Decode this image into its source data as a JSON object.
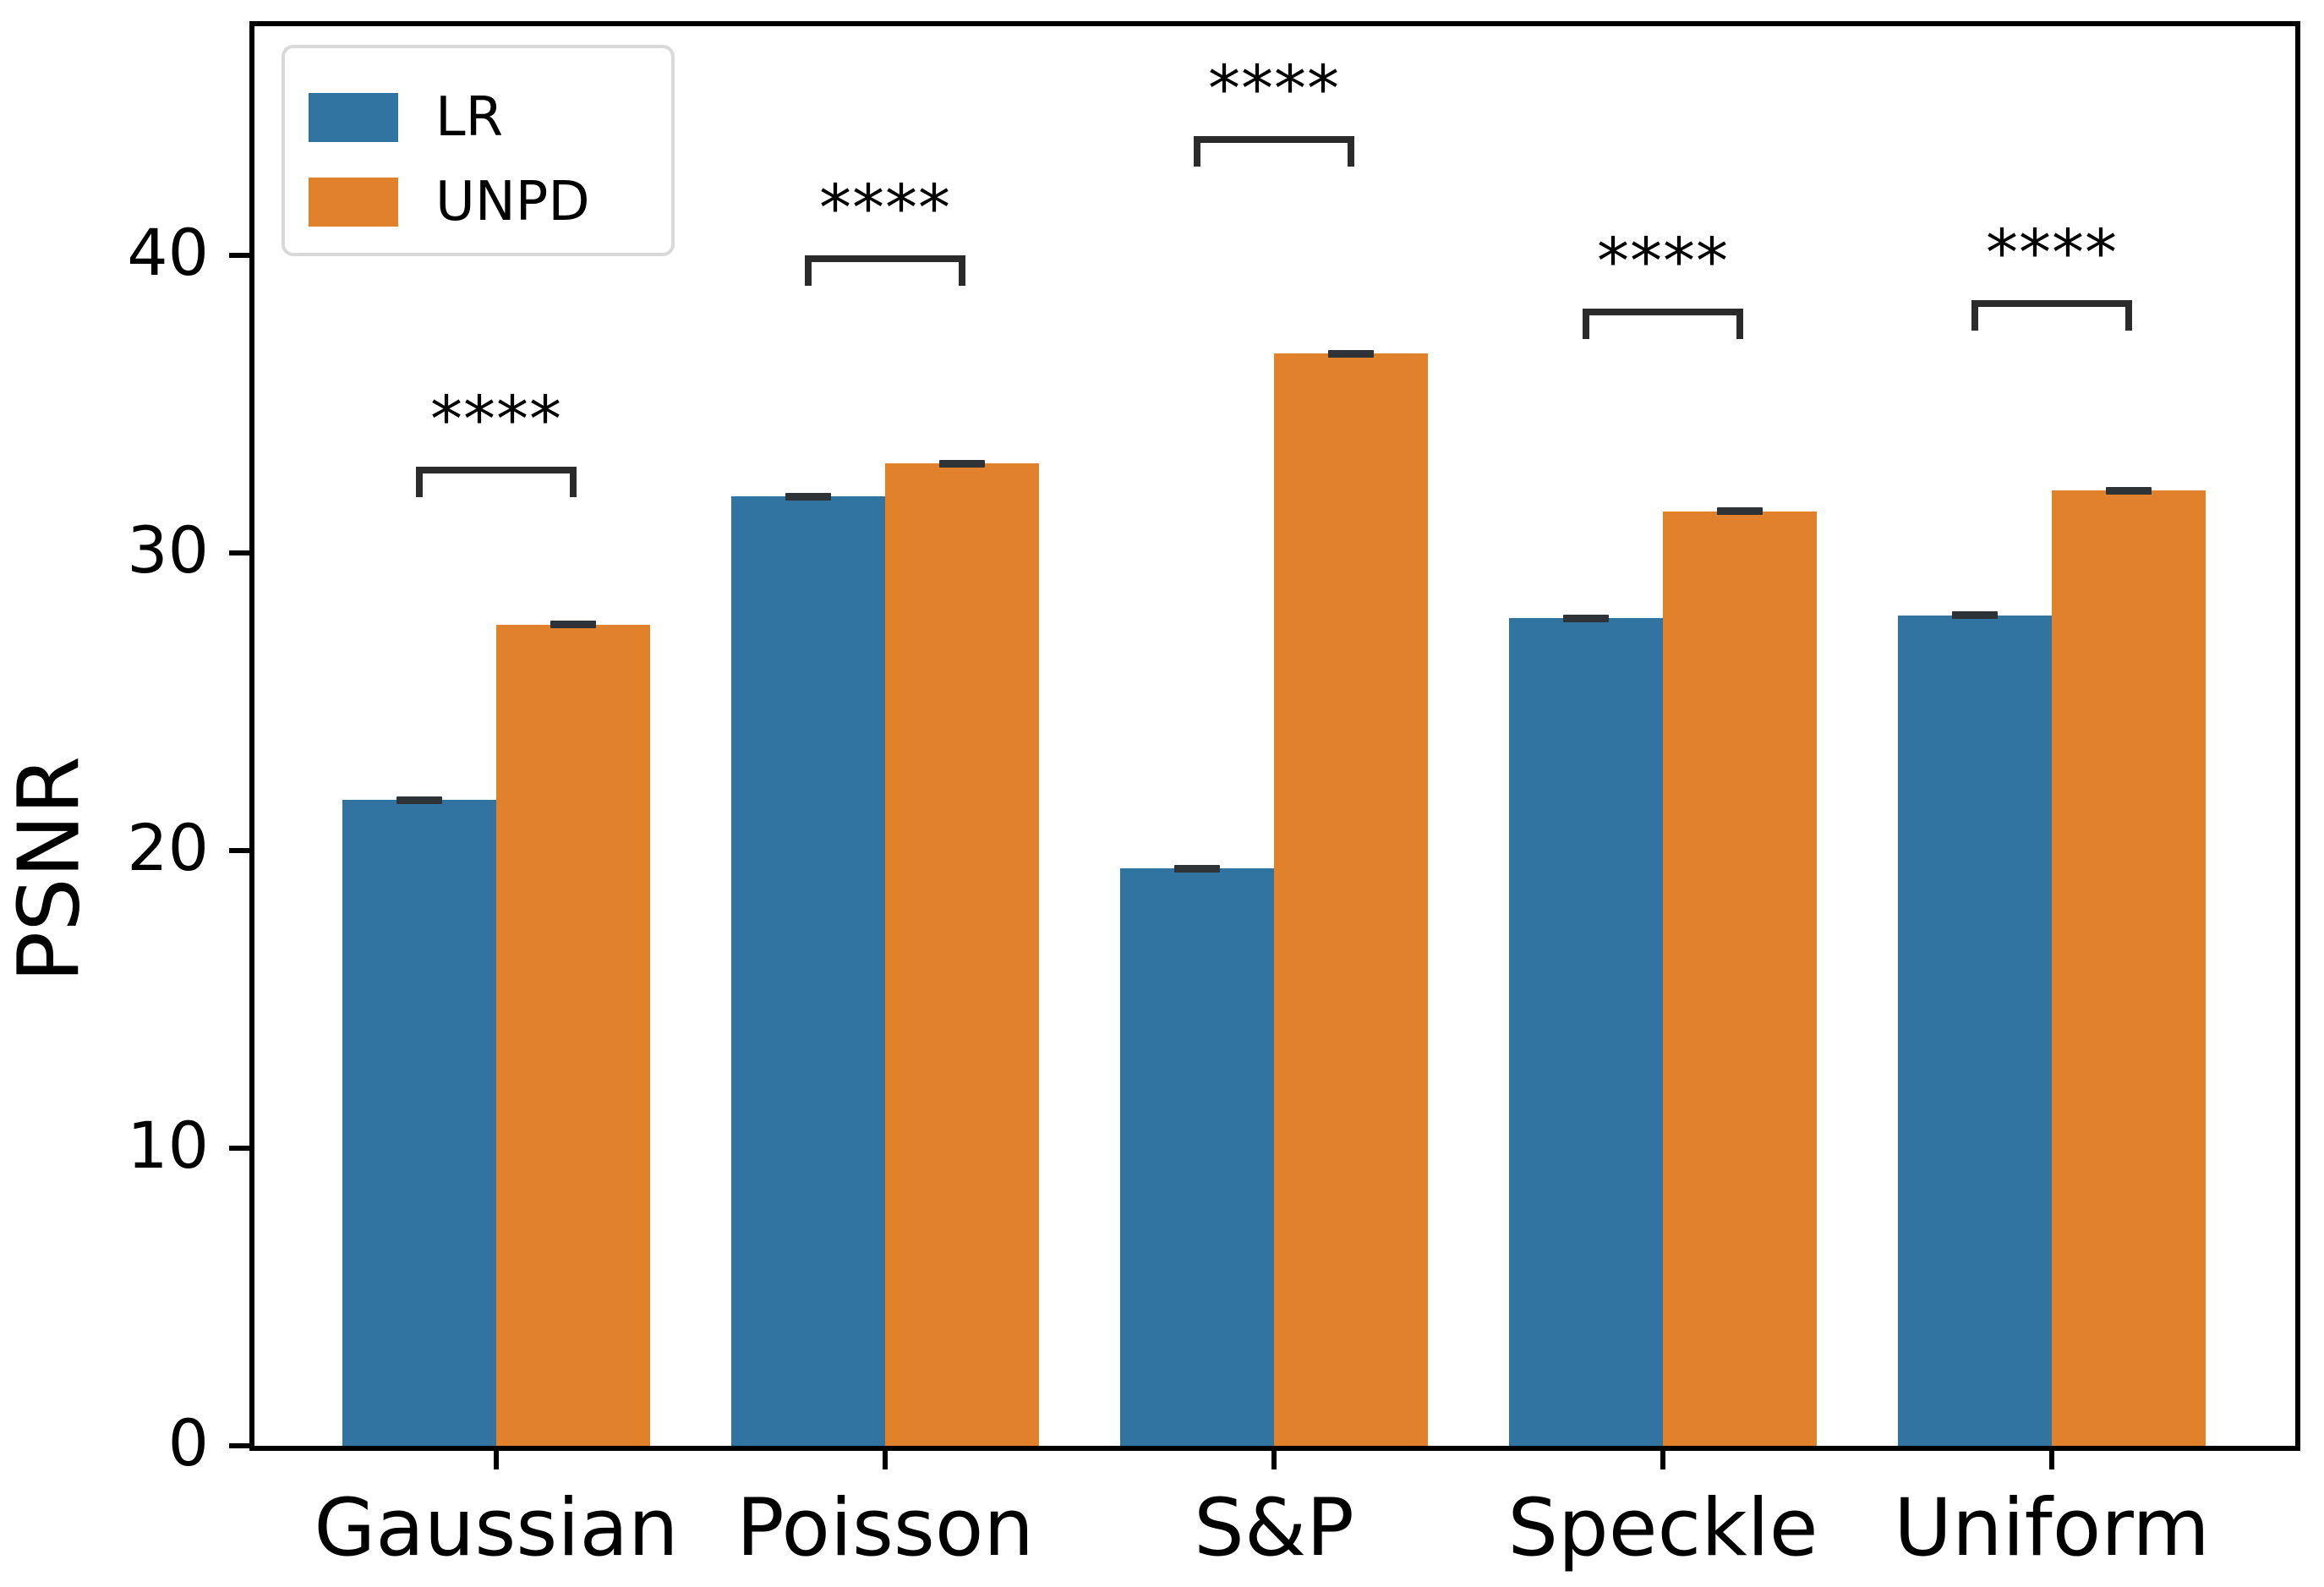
{
  "figure": {
    "background": "#ffffff"
  },
  "chart_data": {
    "type": "bar",
    "title": "",
    "xlabel": "",
    "ylabel": "PSNR",
    "categories": [
      "Gaussian",
      "Poisson",
      "S&P",
      "Speckle",
      "Uniform"
    ],
    "series": [
      {
        "name": "LR",
        "color": "#3274a1",
        "values": [
          21.7,
          31.9,
          19.4,
          27.8,
          27.9
        ]
      },
      {
        "name": "UNPD",
        "color": "#e1812c",
        "values": [
          27.6,
          33.0,
          36.7,
          31.4,
          32.1
        ]
      }
    ],
    "error_bars": {
      "approx_magnitude": 0.1,
      "color": "#2e3338"
    },
    "annotations": [
      {
        "category": "Gaussian",
        "text": "****",
        "bracket_y": 32.9
      },
      {
        "category": "Poisson",
        "text": "****",
        "bracket_y": 40.0
      },
      {
        "category": "S&P",
        "text": "****",
        "bracket_y": 44.0
      },
      {
        "category": "Speckle",
        "text": "****",
        "bracket_y": 38.2
      },
      {
        "category": "Uniform",
        "text": "****",
        "bracket_y": 38.5
      }
    ],
    "annotation_color": "#2b2b2b",
    "yticks": [
      0,
      10,
      20,
      30,
      40
    ],
    "ylim": [
      0,
      47.7
    ],
    "grid": false,
    "legend": {
      "position": "upper left",
      "entries": [
        "LR",
        "UNPD"
      ]
    },
    "axis_color": "#000000"
  }
}
